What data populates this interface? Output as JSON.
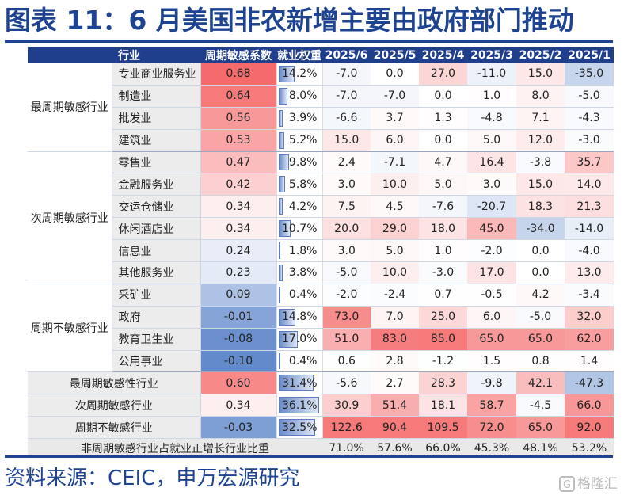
{
  "title": "图表 11：6 月美国非农新增主要由政府部门推动",
  "footer": "资料来源：CEIC，申万宏源研究",
  "watermark": "格隆汇",
  "watermark_glyph": "G",
  "headers": [
    "行业",
    "周期敏感系数",
    "就业权重",
    "2025/6",
    "2025/5",
    "2025/4",
    "2025/3",
    "2025/2",
    "2025/1"
  ],
  "groups": [
    {
      "label": "最周期敏感行业",
      "rows": [
        {
          "industry": "专业商业服务业",
          "coef": "0.68",
          "weight": "14.2%",
          "weight_pct": 14.2,
          "m": [
            "-7.0",
            "0.0",
            "27.0",
            "-11.0",
            "15.0",
            "-35.0"
          ]
        },
        {
          "industry": "制造业",
          "coef": "0.64",
          "weight": "8.0%",
          "weight_pct": 8.0,
          "m": [
            "-7.0",
            "-7.0",
            "0.0",
            "1.0",
            "8.0",
            "-5.0"
          ]
        },
        {
          "industry": "批发业",
          "coef": "0.56",
          "weight": "3.9%",
          "weight_pct": 3.9,
          "m": [
            "-6.6",
            "3.7",
            "1.3",
            "-4.8",
            "7.1",
            "-4.3"
          ]
        },
        {
          "industry": "建筑业",
          "coef": "0.53",
          "weight": "5.2%",
          "weight_pct": 5.2,
          "m": [
            "15.0",
            "6.0",
            "0.0",
            "5.0",
            "12.0",
            "-3.0"
          ]
        }
      ]
    },
    {
      "label": "次周期敏感行业",
      "rows": [
        {
          "industry": "零售业",
          "coef": "0.47",
          "weight": "9.8%",
          "weight_pct": 9.8,
          "m": [
            "2.4",
            "-7.1",
            "4.7",
            "16.4",
            "-3.8",
            "35.7"
          ]
        },
        {
          "industry": "金融服务业",
          "coef": "0.42",
          "weight": "5.8%",
          "weight_pct": 5.8,
          "m": [
            "3.0",
            "10.0",
            "5.0",
            "3.0",
            "15.0",
            "14.0"
          ]
        },
        {
          "industry": "交运仓储业",
          "coef": "0.34",
          "weight": "4.2%",
          "weight_pct": 4.2,
          "m": [
            "7.5",
            "4.5",
            "-7.6",
            "-20.7",
            "18.3",
            "21.3"
          ]
        },
        {
          "industry": "休闲酒店业",
          "coef": "0.34",
          "weight": "10.7%",
          "weight_pct": 10.7,
          "m": [
            "20.0",
            "29.0",
            "18.0",
            "45.0",
            "-34.0",
            "-14.0"
          ]
        },
        {
          "industry": "信息业",
          "coef": "0.24",
          "weight": "1.8%",
          "weight_pct": 1.8,
          "m": [
            "3.0",
            "5.0",
            "1.0",
            "-2.0",
            "0.0",
            "-4.0"
          ]
        },
        {
          "industry": "其他服务业",
          "coef": "0.23",
          "weight": "3.8%",
          "weight_pct": 3.8,
          "m": [
            "-5.0",
            "10.0",
            "-3.0",
            "17.0",
            "0.0",
            "13.0"
          ]
        }
      ]
    },
    {
      "label": "周期不敏感行业",
      "rows": [
        {
          "industry": "采矿业",
          "coef": "0.09",
          "weight": "0.4%",
          "weight_pct": 0.4,
          "m": [
            "-2.0",
            "-2.4",
            "0.7",
            "-0.5",
            "4.2",
            "-3.4"
          ]
        },
        {
          "industry": "政府",
          "coef": "-0.01",
          "weight": "14.8%",
          "weight_pct": 14.8,
          "m": [
            "73.0",
            "7.0",
            "25.0",
            "6.0",
            "-5.0",
            "32.0"
          ]
        },
        {
          "industry": "教育卫生业",
          "coef": "-0.08",
          "weight": "17.0%",
          "weight_pct": 17.0,
          "m": [
            "51.0",
            "83.0",
            "85.0",
            "65.0",
            "65.0",
            "62.0"
          ]
        },
        {
          "industry": "公用事业",
          "coef": "-0.10",
          "weight": "0.4%",
          "weight_pct": 0.4,
          "m": [
            "0.6",
            "2.8",
            "-1.2",
            "1.5",
            "0.8",
            "1.4"
          ]
        }
      ]
    }
  ],
  "summary": [
    {
      "label": "最周期敏感性行业",
      "coef": "0.60",
      "weight": "31.4%",
      "weight_pct": 31.4,
      "m": [
        "-5.6",
        "2.7",
        "28.3",
        "-9.8",
        "42.1",
        "-47.3"
      ]
    },
    {
      "label": "次周期敏感行业",
      "coef": "0.34",
      "weight": "36.1%",
      "weight_pct": 36.1,
      "m": [
        "30.9",
        "51.4",
        "18.1",
        "58.7",
        "-4.5",
        "66.0"
      ]
    },
    {
      "label": "周期不敏感行业",
      "coef": "-0.03",
      "weight": "32.5%",
      "weight_pct": 32.5,
      "m": [
        "122.6",
        "90.4",
        "109.5",
        "72.0",
        "65.0",
        "92.0"
      ]
    }
  ],
  "final": {
    "label": "非周期敏感行业占就业正增长行业比重",
    "values": [
      "71.0%",
      "57.6%",
      "66.0%",
      "45.3%",
      "48.1%",
      "53.2%"
    ]
  },
  "colors": {
    "title": "#1e4390",
    "header_bg": "#1f3f8c",
    "heat_pos": "#f46262",
    "heat_neg": "#5b84c8"
  }
}
